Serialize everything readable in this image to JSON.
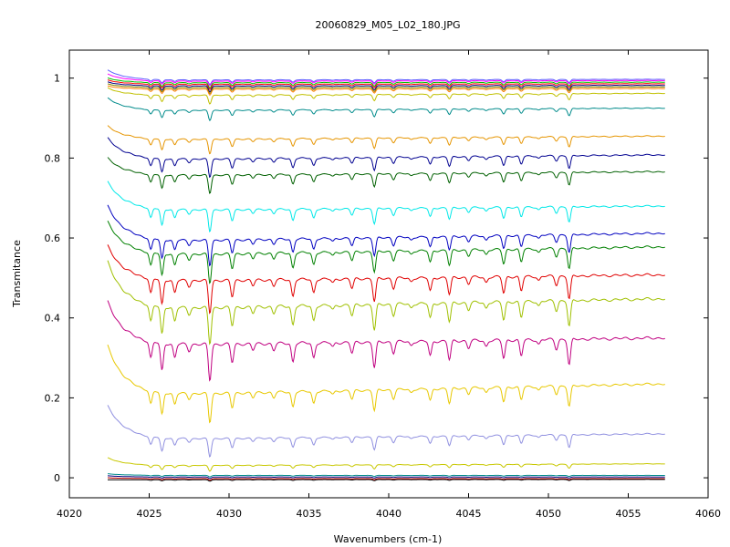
{
  "chart_data": {
    "type": "line",
    "title": "20060829_M05_L02_180.JPG",
    "xlabel": "Wavenumbers (cm-1)",
    "ylabel": "Transmitance",
    "xlim": [
      4020,
      4060
    ],
    "ylim": [
      -0.05,
      1.07
    ],
    "x_ticks": [
      4020,
      4025,
      4030,
      4035,
      4040,
      4045,
      4050,
      4055,
      4060
    ],
    "y_ticks": [
      0,
      0.2,
      0.4,
      0.6,
      0.8,
      1
    ],
    "x_tick_labels": [
      "4020",
      "4025",
      "4030",
      "4035",
      "4040",
      "4045",
      "4050",
      "4055",
      "4060"
    ],
    "y_tick_labels": [
      "0",
      "0.2",
      "0.4",
      "0.6",
      "0.8",
      "1"
    ],
    "x_range": [
      4022.4,
      4057.3
    ],
    "grid": false,
    "legend": "none",
    "series": [
      {
        "start": 1.02,
        "baseline": 0.995,
        "end": 0.997,
        "absorption": 0.006,
        "color": "#6060ff"
      },
      {
        "start": 1.01,
        "baseline": 0.992,
        "end": 0.994,
        "absorption": 0.006,
        "color": "#ff00ff"
      },
      {
        "start": 1.0,
        "baseline": 0.988,
        "end": 0.99,
        "absorption": 0.007,
        "color": "#00c000"
      },
      {
        "start": 0.995,
        "baseline": 0.984,
        "end": 0.986,
        "absorption": 0.007,
        "color": "#ff0000"
      },
      {
        "start": 0.99,
        "baseline": 0.98,
        "end": 0.982,
        "absorption": 0.008,
        "color": "#000080"
      },
      {
        "start": 0.985,
        "baseline": 0.976,
        "end": 0.978,
        "absorption": 0.008,
        "color": "#808000"
      },
      {
        "start": 0.98,
        "baseline": 0.972,
        "end": 0.974,
        "absorption": 0.008,
        "color": "#ff8000"
      },
      {
        "start": 0.975,
        "baseline": 0.956,
        "end": 0.962,
        "absorption": 0.012,
        "color": "#c0c000"
      },
      {
        "start": 0.95,
        "baseline": 0.918,
        "end": 0.925,
        "absorption": 0.014,
        "color": "#008b8b"
      },
      {
        "start": 0.88,
        "baseline": 0.845,
        "end": 0.855,
        "absorption": 0.02,
        "color": "#e69500"
      },
      {
        "start": 0.85,
        "baseline": 0.795,
        "end": 0.808,
        "absorption": 0.025,
        "color": "#000090"
      },
      {
        "start": 0.8,
        "baseline": 0.755,
        "end": 0.766,
        "absorption": 0.025,
        "color": "#006000"
      },
      {
        "start": 0.74,
        "baseline": 0.668,
        "end": 0.68,
        "absorption": 0.03,
        "color": "#00e8e8"
      },
      {
        "start": 0.68,
        "baseline": 0.59,
        "end": 0.612,
        "absorption": 0.035,
        "color": "#0000c0"
      },
      {
        "start": 0.64,
        "baseline": 0.555,
        "end": 0.578,
        "absorption": 0.04,
        "color": "#008000"
      },
      {
        "start": 0.58,
        "baseline": 0.49,
        "end": 0.508,
        "absorption": 0.045,
        "color": "#e00000"
      },
      {
        "start": 0.54,
        "baseline": 0.42,
        "end": 0.448,
        "absorption": 0.05,
        "color": "#a0c000"
      },
      {
        "start": 0.44,
        "baseline": 0.33,
        "end": 0.35,
        "absorption": 0.05,
        "color": "#c00080"
      },
      {
        "start": 0.33,
        "baseline": 0.205,
        "end": 0.235,
        "absorption": 0.04,
        "color": "#e8c800"
      },
      {
        "start": 0.18,
        "baseline": 0.095,
        "end": 0.11,
        "absorption": 0.025,
        "color": "#9090e0"
      },
      {
        "start": 0.05,
        "baseline": 0.03,
        "end": 0.035,
        "absorption": 0.008,
        "color": "#c8c800"
      },
      {
        "start": 0.01,
        "baseline": 0.006,
        "end": 0.006,
        "absorption": 0.002,
        "color": "#008b8b"
      },
      {
        "start": 0.005,
        "baseline": 0.002,
        "end": 0.002,
        "absorption": 0.002,
        "color": "#000080"
      },
      {
        "start": 0.0,
        "baseline": -0.002,
        "end": -0.002,
        "absorption": 0.002,
        "color": "#c00000"
      },
      {
        "start": -0.005,
        "baseline": -0.005,
        "end": -0.004,
        "absorption": 0.002,
        "color": "#000000"
      }
    ]
  }
}
